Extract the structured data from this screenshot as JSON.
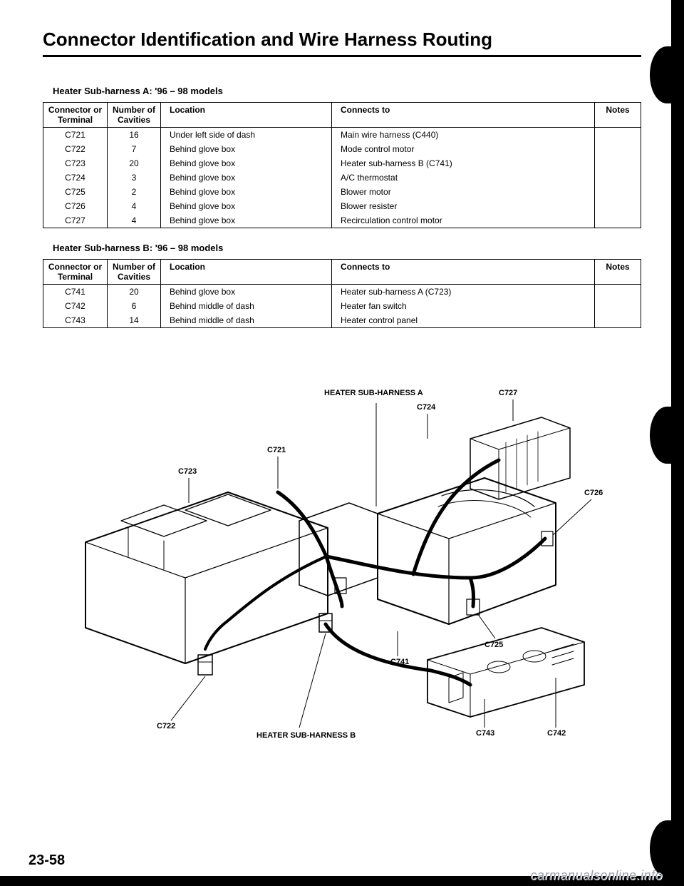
{
  "title": "Connector Identification and Wire Harness Routing",
  "page_number": "23-58",
  "watermark": "carmanualsonline.info",
  "sectionA": {
    "label": "Heater Sub-harness A: '96 – 98 models",
    "headers": [
      "Connector or Terminal",
      "Number of Cavities",
      "Location",
      "Connects to",
      "Notes"
    ],
    "rows": [
      {
        "conn": "C721",
        "cav": "16",
        "loc": "Under left side of dash",
        "ct": "Main wire harness (C440)",
        "notes": ""
      },
      {
        "conn": "C722",
        "cav": "7",
        "loc": "Behind glove box",
        "ct": "Mode control motor",
        "notes": ""
      },
      {
        "conn": "C723",
        "cav": "20",
        "loc": "Behind glove box",
        "ct": "Heater sub-harness B (C741)",
        "notes": ""
      },
      {
        "conn": "C724",
        "cav": "3",
        "loc": "Behind glove box",
        "ct": "A/C thermostat",
        "notes": ""
      },
      {
        "conn": "C725",
        "cav": "2",
        "loc": "Behind glove box",
        "ct": "Blower motor",
        "notes": ""
      },
      {
        "conn": "C726",
        "cav": "4",
        "loc": "Behind glove box",
        "ct": "Blower resister",
        "notes": ""
      },
      {
        "conn": "C727",
        "cav": "4",
        "loc": "Behind glove box",
        "ct": "Recirculation control motor",
        "notes": ""
      }
    ]
  },
  "sectionB": {
    "label": "Heater Sub-harness B: '96 – 98 models",
    "headers": [
      "Connector or Terminal",
      "Number of Cavities",
      "Location",
      "Connects to",
      "Notes"
    ],
    "rows": [
      {
        "conn": "C741",
        "cav": "20",
        "loc": "Behind glove box",
        "ct": "Heater sub-harness A (C723)",
        "notes": ""
      },
      {
        "conn": "C742",
        "cav": "6",
        "loc": "Behind middle of dash",
        "ct": "Heater fan switch",
        "notes": ""
      },
      {
        "conn": "C743",
        "cav": "14",
        "loc": "Behind middle of dash",
        "ct": "Heater control panel",
        "notes": ""
      }
    ]
  },
  "diagram": {
    "labels": {
      "harnessA": "HEATER SUB-HARNESS A",
      "harnessB": "HEATER SUB-HARNESS B",
      "c721": "C721",
      "c722": "C722",
      "c723": "C723",
      "c724": "C724",
      "c725": "C725",
      "c726": "C726",
      "c727": "C727",
      "c741": "C741",
      "c742": "C742",
      "c743": "C743"
    },
    "colors": {
      "stroke": "#000000",
      "fill": "#ffffff",
      "harness": "#000000"
    },
    "line_widths": {
      "outline": 2,
      "detail": 1.2,
      "harness": 5,
      "leader": 1
    }
  }
}
